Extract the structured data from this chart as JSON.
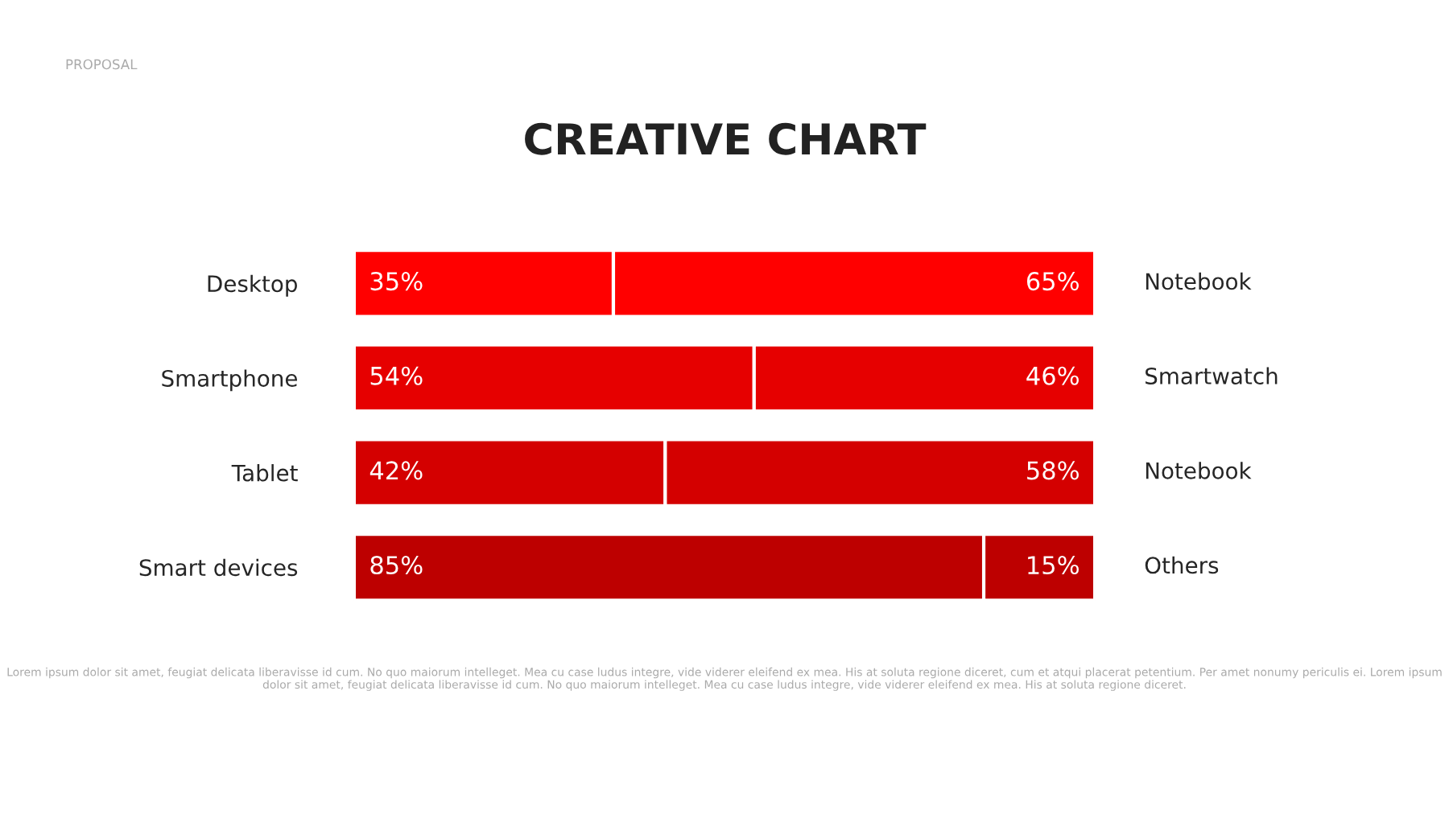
{
  "chart_data": {
    "type": "bar",
    "orientation": "horizontal",
    "stacked": true,
    "title": "CREATIVE CHART",
    "categories": [
      "Desktop",
      "Smartphone",
      "Tablet",
      "Smart devices"
    ],
    "xlim": [
      0,
      100
    ],
    "series": [
      {
        "colors": [
          "#ff0000",
          "#e60000",
          "#d40000",
          "#bd0000"
        ],
        "values": [
          35,
          54,
          42,
          85
        ],
        "value_labels": [
          "35%",
          "54%",
          "42%",
          "85%"
        ]
      },
      {
        "colors": [
          "#ff0000",
          "#e60000",
          "#d40000",
          "#bd0000"
        ],
        "values": [
          65,
          46,
          58,
          15
        ],
        "value_labels": [
          "65%",
          "46%",
          "58%",
          "15%"
        ]
      }
    ],
    "annotations": [
      "Notebook",
      "Smartwatch",
      "Notebook",
      "Others",
      "PROPOSAL",
      "Lorem ipsum dolor sit amet, feugiat delicata liberavisse id cum. No quo maiorum intelleget. Mea cu case ludus integre, vide viderer eleifend ex mea. His at soluta regione diceret, cum et atqui placerat petentium. Per amet nonumy periculis ei. Lorem ipsum dolor sit amet, feugiat delicata liberavisse id cum. No quo maiorum intelleget. Mea cu case ludus integre, vide viderer eleifend ex mea. His at soluta regione diceret."
    ]
  }
}
